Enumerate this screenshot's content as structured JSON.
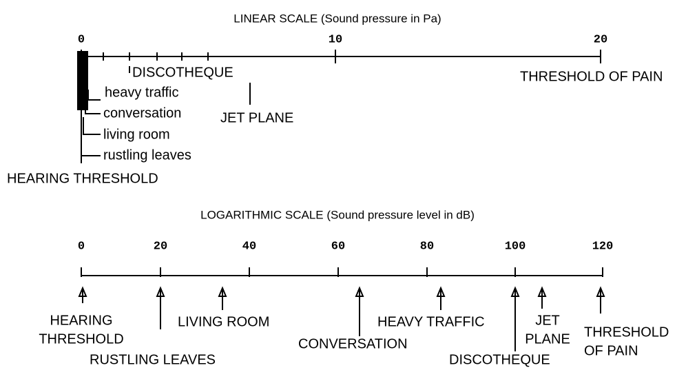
{
  "linear": {
    "title": "LINEAR SCALE (Sound pressure in Pa)",
    "ticks": [
      "0",
      "10",
      "20"
    ],
    "labels": [
      "DISCOTHEQUE",
      "heavy traffic",
      "conversation",
      "living room",
      "rustling leaves",
      "HEARING THRESHOLD",
      "JET PLANE",
      "THRESHOLD OF PAIN"
    ]
  },
  "logarithmic": {
    "title": "LOGARITHMIC SCALE (Sound pressure level in dB)",
    "ticks": [
      "0",
      "20",
      "40",
      "60",
      "80",
      "100",
      "120"
    ],
    "labels": [
      [
        "HEARING",
        "THRESHOLD"
      ],
      [
        "RUSTLING LEAVES"
      ],
      [
        "LIVING ROOM"
      ],
      [
        "CONVERSATION"
      ],
      [
        "HEAVY TRAFFIC"
      ],
      [
        "DISCOTHEQUE"
      ],
      [
        "JET",
        "PLANE"
      ],
      [
        "THRESHOLD",
        "OF PAIN"
      ]
    ]
  }
}
